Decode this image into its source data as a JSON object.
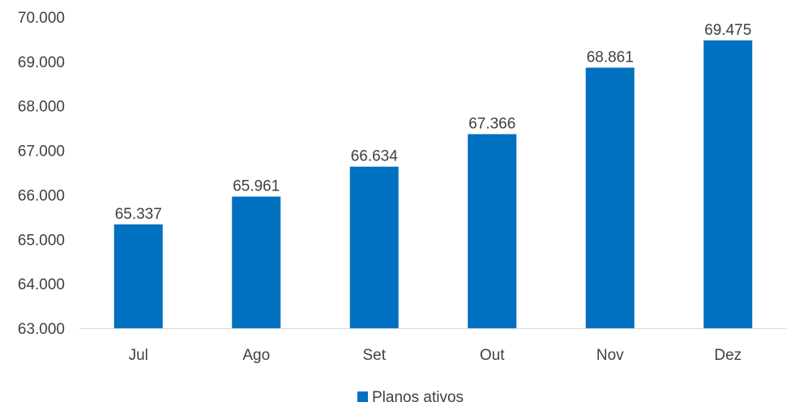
{
  "chart_data": {
    "type": "bar",
    "categories": [
      "Jul",
      "Ago",
      "Set",
      "Out",
      "Nov",
      "Dez"
    ],
    "series": [
      {
        "name": "Planos ativos",
        "values": [
          65337,
          65961,
          66634,
          67366,
          68861,
          69475
        ],
        "value_labels": [
          "65.337",
          "65.961",
          "66.634",
          "67.366",
          "68.861",
          "69.475"
        ],
        "color": "#0070C0"
      }
    ],
    "ylim": [
      63000,
      70000
    ],
    "yticks": [
      63000,
      64000,
      65000,
      66000,
      67000,
      68000,
      69000,
      70000
    ],
    "ytick_labels": [
      "63.000",
      "64.000",
      "65.000",
      "66.000",
      "67.000",
      "68.000",
      "69.000",
      "70.000"
    ],
    "grid": false,
    "legend_position": "bottom",
    "axis_color": "#d9d9d9",
    "text_color": "#404040"
  }
}
